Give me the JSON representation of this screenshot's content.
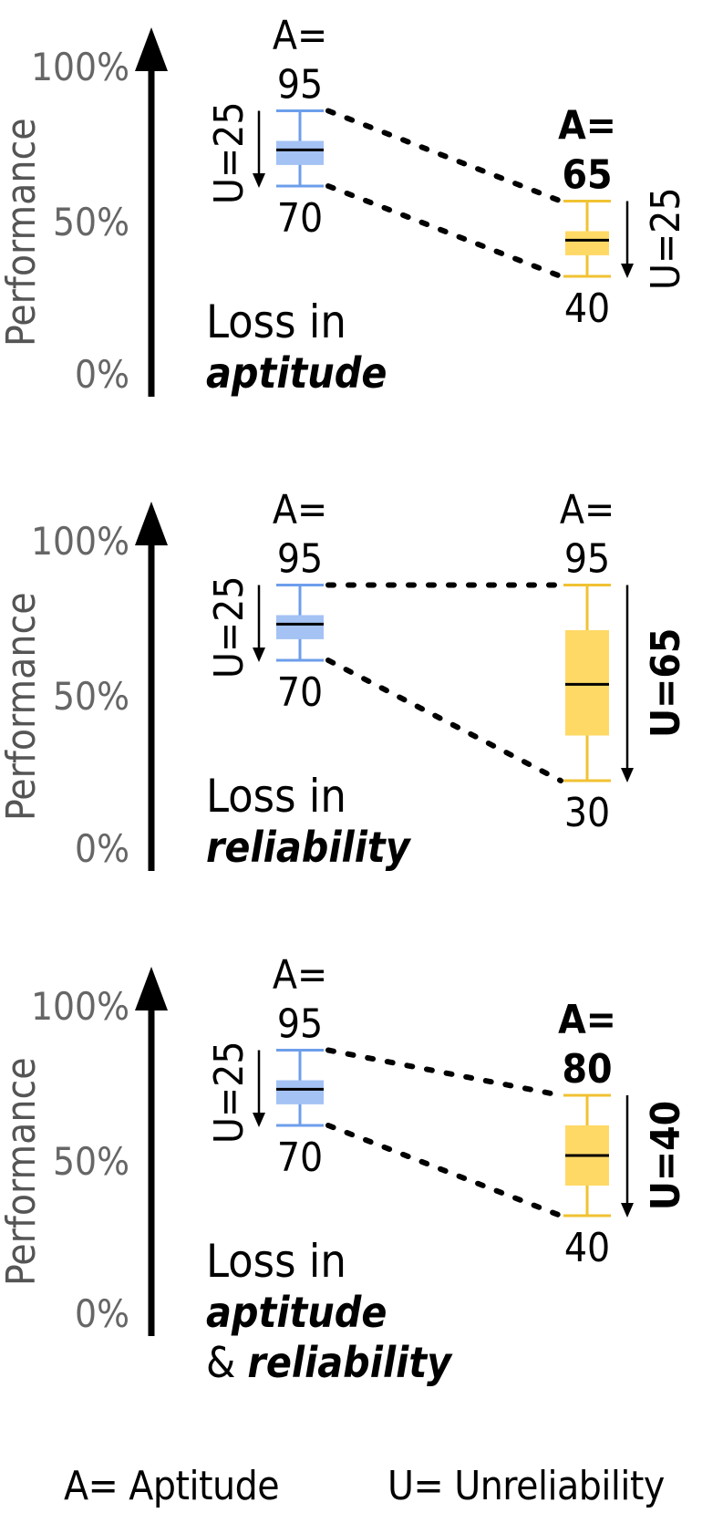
{
  "colors": {
    "blue": "#a4c2f4",
    "blue_line": "#6d9eeb",
    "yellow": "#ffd966",
    "yellow_line": "#f1c232"
  },
  "axis": {
    "label": "Performance",
    "ticks": [
      "100%",
      "50%",
      "0%"
    ]
  },
  "panels": [
    {
      "caption": [
        {
          "text": "Loss in",
          "bold": false
        },
        {
          "text": "aptitude",
          "bold": true
        }
      ],
      "left": {
        "a_label": "A=",
        "a_value": "95",
        "a_bold": false,
        "u_label": "U=25",
        "u_bold": false,
        "low": "70",
        "whisker_top": 95,
        "q3": 85,
        "median": 82,
        "q1": 77,
        "whisker_low": 70
      },
      "right": {
        "a_label": "A=",
        "a_value": "65",
        "a_bold": true,
        "u_label": "U=25",
        "u_bold": false,
        "low": "40",
        "whisker_top": 65,
        "q3": 55,
        "median": 52,
        "q1": 47,
        "whisker_low": 40
      }
    },
    {
      "caption": [
        {
          "text": "Loss in",
          "bold": false
        },
        {
          "text": "reliability",
          "bold": true
        }
      ],
      "left": {
        "a_label": "A=",
        "a_value": "95",
        "a_bold": false,
        "u_label": "U=25",
        "u_bold": false,
        "low": "70",
        "whisker_top": 95,
        "q3": 85,
        "median": 82,
        "q1": 77,
        "whisker_low": 70
      },
      "right": {
        "a_label": "A=",
        "a_value": "95",
        "a_bold": false,
        "u_label": "U=65",
        "u_bold": true,
        "low": "30",
        "whisker_top": 95,
        "q3": 80,
        "median": 62,
        "q1": 45,
        "whisker_low": 30
      }
    },
    {
      "caption": [
        {
          "text": "Loss in",
          "bold": false
        },
        {
          "text": "aptitude",
          "bold": true
        },
        {
          "text": "& ",
          "bold": false,
          "suffix": "reliability"
        }
      ],
      "left": {
        "a_label": "A=",
        "a_value": "95",
        "a_bold": false,
        "u_label": "U=25",
        "u_bold": false,
        "low": "70",
        "whisker_top": 95,
        "q3": 85,
        "median": 82,
        "q1": 77,
        "whisker_low": 70
      },
      "right": {
        "a_label": "A=",
        "a_value": "80",
        "a_bold": true,
        "u_label": "U=40",
        "u_bold": true,
        "low": "40",
        "whisker_top": 80,
        "q3": 70,
        "median": 60,
        "q1": 50,
        "whisker_low": 40
      }
    }
  ],
  "legend": {
    "a": "A= Aptitude",
    "u": "U= Unreliability"
  }
}
